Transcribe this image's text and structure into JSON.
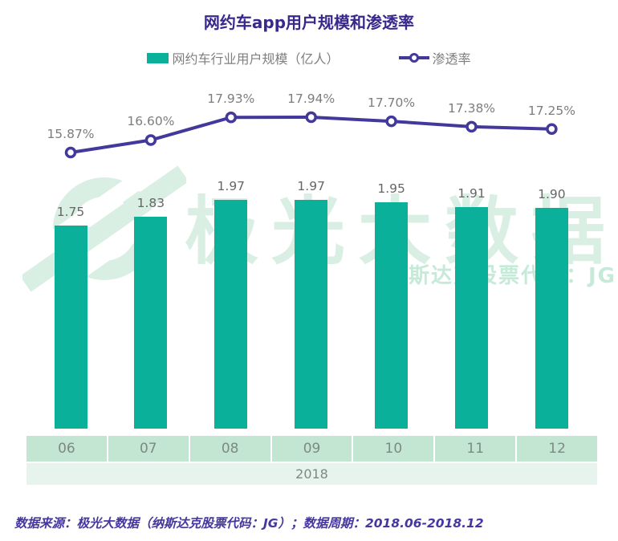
{
  "watermark": {
    "logo": "aurora-logo",
    "text": "极光大数据",
    "subtext": "纳斯达克股票代码：JG"
  },
  "footer": {
    "text": "数据来源：极光大数据（纳斯达克股票代码：JG）；数据周期：2018.06-2018.12"
  },
  "colors": {
    "title_color": "#38288c",
    "bar_color": "#0bb09a",
    "line_color": "#43389c",
    "value_label_color": "#666666",
    "pct_label_color": "#7d7d7d",
    "axis_month_bg": "#c3e6d2",
    "axis_year_bg": "#e7f3ed",
    "axis_text_color": "#7d8a81",
    "watermark_color": "#d9efe3",
    "watermark_sub_color": "#c6ead8",
    "footer_color": "#4537a0"
  },
  "chart_data": {
    "type": "bar",
    "subtype": "bar+line combo",
    "title": "网约车app用户规模和渗透率",
    "categories": [
      "06",
      "07",
      "08",
      "09",
      "10",
      "11",
      "12"
    ],
    "x_group_label": "2018",
    "series": [
      {
        "name": "网约车行业用户规模（亿人）",
        "type": "bar",
        "values": [
          1.75,
          1.83,
          1.97,
          1.97,
          1.95,
          1.91,
          1.9
        ]
      },
      {
        "name": "渗透率",
        "type": "line",
        "unit": "%",
        "values": [
          15.87,
          16.6,
          17.93,
          17.94,
          17.7,
          17.38,
          17.25
        ]
      }
    ],
    "value_labels_shown": true,
    "legend_position": "top",
    "grid": false
  }
}
